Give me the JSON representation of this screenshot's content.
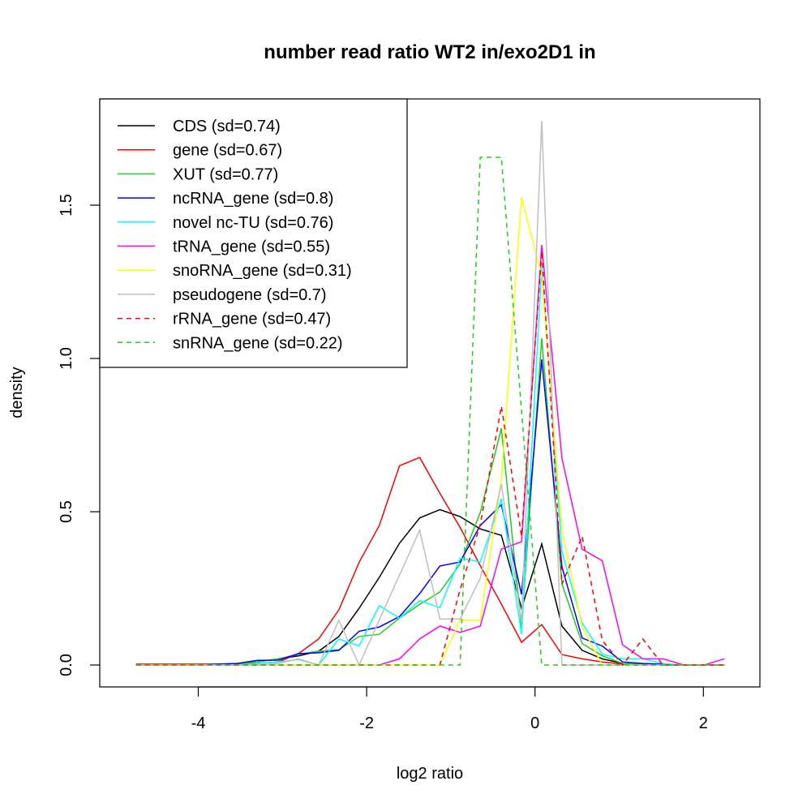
{
  "chart_data": {
    "type": "line",
    "title": "number read ratio WT2 in/exo2D1 in",
    "xlabel": "log2 ratio",
    "ylabel": "density",
    "xlim": [
      -5.05,
      2.65
    ],
    "ylim": [
      -0.07,
      1.84
    ],
    "xticks": [
      -4,
      -2,
      0,
      2
    ],
    "xtick_labels": [
      "-4",
      "-2",
      "0",
      "2"
    ],
    "yticks": [
      0,
      0.5,
      1,
      1.5
    ],
    "ytick_labels": [
      "0.0",
      "0.5",
      "1.0",
      "1.5"
    ],
    "grid": false,
    "legend_position": "top-left",
    "x": [
      -4.74,
      -4.5,
      -4.26,
      -4.02,
      -3.78,
      -3.54,
      -3.3,
      -3.05,
      -2.81,
      -2.57,
      -2.33,
      -2.09,
      -1.85,
      -1.61,
      -1.37,
      -1.13,
      -0.89,
      -0.65,
      -0.4,
      -0.16,
      0.08,
      0.32,
      0.56,
      0.8,
      1.04,
      1.28,
      1.52,
      1.77,
      2.01,
      2.25
    ],
    "series": [
      {
        "name": "CDS (sd=0.74)",
        "color": "#000000",
        "dash": "solid",
        "values": [
          0,
          0,
          0,
          0,
          0.002,
          0.005,
          0.01,
          0.02,
          0.03,
          0.045,
          0.093,
          0.185,
          0.286,
          0.397,
          0.48,
          0.507,
          0.484,
          0.444,
          0.423,
          0.185,
          0.395,
          0.127,
          0.048,
          0.02,
          0.005,
          0.002,
          0,
          0,
          0,
          0
        ]
      },
      {
        "name": "gene (sd=0.67)",
        "color": "#ff0000",
        "dash": "solid",
        "values": [
          0.003,
          0.003,
          0.003,
          0.003,
          0.003,
          0.003,
          0.005,
          0.01,
          0.037,
          0.085,
          0.18,
          0.335,
          0.455,
          0.65,
          0.677,
          0.56,
          0.449,
          0.324,
          0.199,
          0.074,
          0.132,
          0.034,
          0.02,
          0.01,
          0.003,
          0.002,
          0,
          0,
          0,
          0
        ]
      },
      {
        "name": "XUT (sd=0.77)",
        "color": "#22cc22",
        "dash": "solid",
        "values": [
          0,
          0,
          0,
          0,
          0,
          0.003,
          0.01,
          0.02,
          0.035,
          0.045,
          0.05,
          0.093,
          0.1,
          0.153,
          0.198,
          0.238,
          0.33,
          0.497,
          0.772,
          0.12,
          1.066,
          0.265,
          0.07,
          0.03,
          0.005,
          0.002,
          0,
          0,
          0,
          0
        ]
      },
      {
        "name": "ncRNA_gene (sd=0.8)",
        "color": "#0000ff",
        "dash": "solid",
        "values": [
          0,
          0,
          0,
          0,
          0.003,
          0.005,
          0.015,
          0.016,
          0.037,
          0.04,
          0.048,
          0.11,
          0.124,
          0.158,
          0.233,
          0.323,
          0.336,
          0.455,
          0.523,
          0.23,
          0.997,
          0.32,
          0.088,
          0.062,
          0.01,
          0.005,
          0.003,
          0,
          0,
          0
        ]
      },
      {
        "name": "novel nc-TU (sd=0.76)",
        "color": "#00ffff",
        "dash": "solid",
        "values": [
          0,
          0,
          0,
          0,
          0,
          0,
          0.005,
          0.01,
          0.018,
          0,
          0.085,
          0.062,
          0.194,
          0.153,
          0.21,
          0.187,
          0.349,
          0.336,
          0.542,
          0.1,
          1.3,
          0.37,
          0.137,
          0.035,
          0.02,
          0.02,
          0.005,
          0,
          0,
          0
        ]
      },
      {
        "name": "tRNA_gene (sd=0.55)",
        "color": "#ff00ff",
        "dash": "solid",
        "values": [
          0,
          0,
          0,
          0,
          0,
          0,
          0,
          0,
          0,
          0,
          0,
          0,
          0,
          0.02,
          0.085,
          0.127,
          0.106,
          0.127,
          0.378,
          0.402,
          1.37,
          0.675,
          0.378,
          0.34,
          0.066,
          0.02,
          0.02,
          0,
          0,
          0.02
        ]
      },
      {
        "name": "snoRNA_gene (sd=0.31)",
        "color": "#ffff00",
        "dash": "solid",
        "values": [
          0,
          0,
          0,
          0,
          0,
          0,
          0,
          0,
          0,
          0,
          0,
          0,
          0,
          0,
          0,
          0,
          0.146,
          0.146,
          0.605,
          1.526,
          1.27,
          0.44,
          0.124,
          0,
          0,
          0,
          0,
          0,
          0,
          0
        ]
      },
      {
        "name": "pseudogene (sd=0.7)",
        "color": "#bebebe",
        "dash": "solid",
        "values": [
          0,
          0,
          0,
          0,
          0,
          0,
          0,
          0.005,
          0.02,
          0,
          0.146,
          0,
          0.147,
          0.293,
          0.44,
          0.15,
          0.15,
          0.283,
          0.59,
          0.14,
          1.775,
          0,
          0,
          0,
          0,
          0,
          0,
          0,
          0,
          0
        ]
      },
      {
        "name": "rRNA_gene (sd=0.47)",
        "color": "#ff0000",
        "dash": "dashed",
        "values": [
          0,
          0,
          0,
          0,
          0,
          0,
          0,
          0,
          0,
          0,
          0,
          0,
          0,
          0,
          0,
          0,
          0.246,
          0.458,
          0.844,
          0.42,
          1.35,
          0.264,
          0.42,
          0.08,
          0,
          0.085,
          0,
          0,
          0,
          0
        ]
      },
      {
        "name": "snRNA_gene (sd=0.22)",
        "color": "#22cc22",
        "dash": "dashed",
        "values": [
          0,
          0,
          0,
          0,
          0,
          0,
          0,
          0,
          0,
          0,
          0,
          0,
          0,
          0,
          0,
          0,
          0,
          1.656,
          1.656,
          0.83,
          0,
          0,
          0,
          0,
          0,
          0,
          0,
          0,
          0,
          0
        ]
      }
    ]
  }
}
